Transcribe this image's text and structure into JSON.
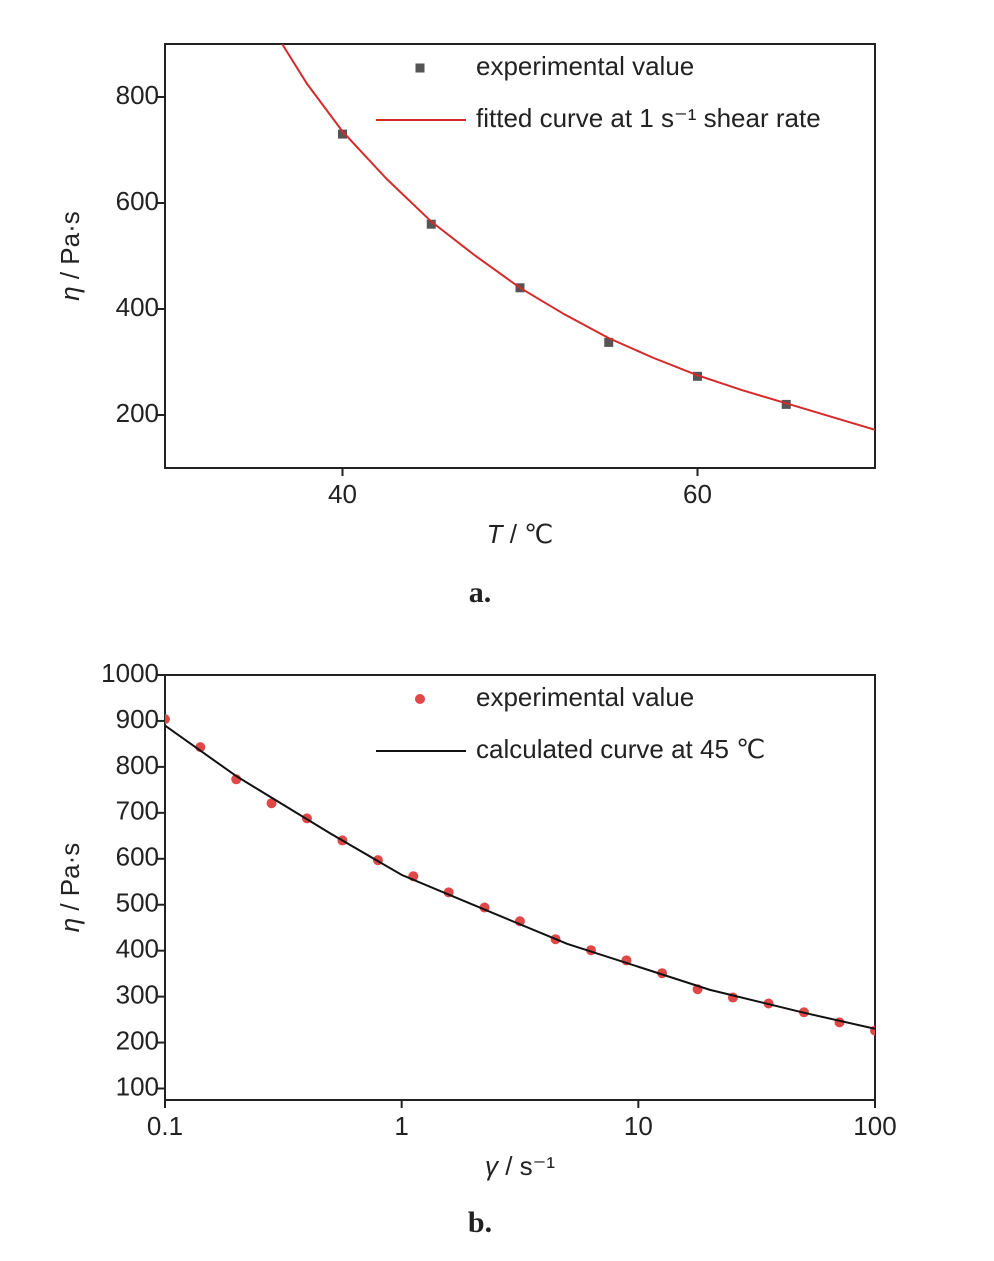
{
  "chart_data": [
    {
      "type": "line",
      "caption": "a.",
      "x_label": "T / ℃",
      "y_label": "η / Pa·s",
      "xlim": [
        30,
        70
      ],
      "xticks": [
        40,
        60
      ],
      "ylim": [
        100,
        900
      ],
      "yticks": [
        200,
        400,
        600,
        800
      ],
      "legend": "top-center",
      "series": [
        {
          "name": "experimental value",
          "color": "#555555",
          "style": "markers",
          "marker": "square",
          "x": [
            40,
            45,
            50,
            55,
            60,
            65
          ],
          "values": [
            730,
            560,
            440,
            337,
            273,
            220
          ]
        },
        {
          "name": "fitted curve at 1 s⁻¹ shear rate",
          "color": "#d42a2a",
          "style": "line",
          "x": [
            36.6,
            38,
            40,
            42.5,
            45,
            47.5,
            50,
            52.5,
            55,
            57.5,
            60,
            62.5,
            65,
            67.5,
            70
          ],
          "values": [
            900,
            825,
            735,
            645,
            565,
            500,
            440,
            390,
            345,
            308,
            275,
            247,
            222,
            197,
            172
          ]
        }
      ]
    },
    {
      "type": "line",
      "caption": "b.",
      "x_label": "γ / s⁻¹",
      "y_label": "η / Pa·s",
      "xscale": "log",
      "xlim": [
        0.1,
        100
      ],
      "xticks": [
        0.1,
        1,
        10,
        100
      ],
      "ylim": [
        75,
        1000
      ],
      "yticks": [
        100,
        200,
        300,
        400,
        500,
        600,
        700,
        800,
        900,
        1000
      ],
      "legend": "top-center",
      "series": [
        {
          "name": "experimental value",
          "color": "#e04848",
          "style": "markers",
          "marker": "circle",
          "x": [
            0.1,
            0.141,
            0.2,
            0.282,
            0.398,
            0.562,
            0.794,
            1.12,
            1.58,
            2.24,
            3.16,
            4.47,
            6.31,
            8.91,
            12.6,
            17.8,
            25.1,
            35.5,
            50.1,
            70.8,
            100
          ],
          "values": [
            904,
            843,
            773,
            721,
            688,
            640,
            597,
            562,
            527,
            494,
            464,
            425,
            401,
            379,
            351,
            316,
            298,
            285,
            266,
            244,
            226
          ]
        },
        {
          "name": "calculated curve at 45 ℃",
          "color": "#111111",
          "style": "line",
          "x": [
            0.1,
            0.2,
            0.5,
            1,
            2,
            5,
            10,
            20,
            50,
            100
          ],
          "values": [
            890,
            780,
            655,
            565,
            500,
            415,
            365,
            315,
            265,
            230
          ]
        }
      ]
    }
  ]
}
